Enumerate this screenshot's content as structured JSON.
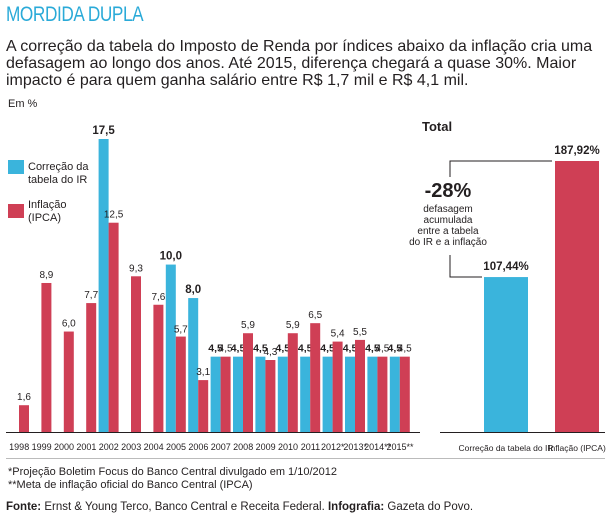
{
  "header": {
    "title": "MORDIDA DUPLA",
    "subtitle": "A correção da tabela do Imposto de Renda por índices abaixo da inflação cria uma defasagem ao longo dos anos. Até 2015, diferença chegará a quase 30%. Maior impacto é para quem ganha salário entre R$ 1,7 mil e R$ 4,1 mil.",
    "unit": "Em %"
  },
  "colors": {
    "correcao": "#3ab4dc",
    "inflacao": "#cf3f55",
    "text": "#231f20"
  },
  "chart_data": [
    {
      "type": "bar",
      "categories": [
        "1998",
        "1999",
        "2000",
        "2001",
        "2002",
        "2003",
        "2004",
        "2005",
        "2006",
        "2007",
        "2008",
        "2009",
        "2010",
        "2011",
        "2012*",
        "2013*",
        "2014**",
        "2015**"
      ],
      "series": [
        {
          "name": "Correção da tabela do IR",
          "values": [
            0,
            0,
            0,
            0,
            17.5,
            0,
            0,
            10.0,
            8.0,
            4.5,
            4.5,
            4.5,
            4.5,
            4.5,
            4.5,
            4.5,
            4.5,
            4.5
          ]
        },
        {
          "name": "Inflação (IPCA)",
          "values": [
            1.6,
            8.9,
            6.0,
            7.7,
            12.5,
            9.3,
            7.6,
            5.7,
            3.1,
            4.5,
            5.9,
            4.3,
            5.9,
            6.5,
            5.4,
            5.5,
            4.5,
            4.5
          ]
        }
      ],
      "value_labels": {
        "correcao": [
          "",
          "",
          "",
          "",
          "17,5",
          "",
          "",
          "10,0",
          "8,0",
          "4,5",
          "4,5",
          "4,5",
          "4,5",
          "4,5",
          "4,5",
          "4,5",
          "4,5",
          "4,5"
        ],
        "inflacao": [
          "1,6",
          "8,9",
          "6,0",
          "7,7",
          "12,5",
          "9,3",
          "7,6",
          "5,7",
          "3,1",
          "4,5",
          "5,9",
          "4,3",
          "5,9",
          "6,5",
          "5,4",
          "5,5",
          "4,5",
          "4,5"
        ]
      },
      "legend": [
        "Correção da tabela do IR",
        "Inflação (IPCA)"
      ],
      "ylim": [
        0,
        18
      ]
    },
    {
      "type": "bar",
      "title": "Total",
      "categories": [
        "Correção da tabela do IR",
        "Inflação (IPCA)"
      ],
      "values": [
        107.44,
        187.92
      ],
      "value_labels": [
        "107,44%",
        "187,92%"
      ],
      "annotation": {
        "value": "-28%",
        "text": [
          "defasagem",
          "acumulada",
          "entre a tabela",
          "do IR e a inflação"
        ]
      },
      "ylim": [
        0,
        190
      ]
    }
  ],
  "footnotes": {
    "note1": "*Projeção Boletim Focus do Banco Central divulgado em 1/10/2012",
    "note2": "**Meta de inflação oficial do Banco Central (IPCA)",
    "source_label": "Fonte:",
    "source_text": " Ernst & Young Terco, Banco Central e Receita Federal. ",
    "infographic_label": "Infografia:",
    "infographic_text": " Gazeta do Povo."
  }
}
